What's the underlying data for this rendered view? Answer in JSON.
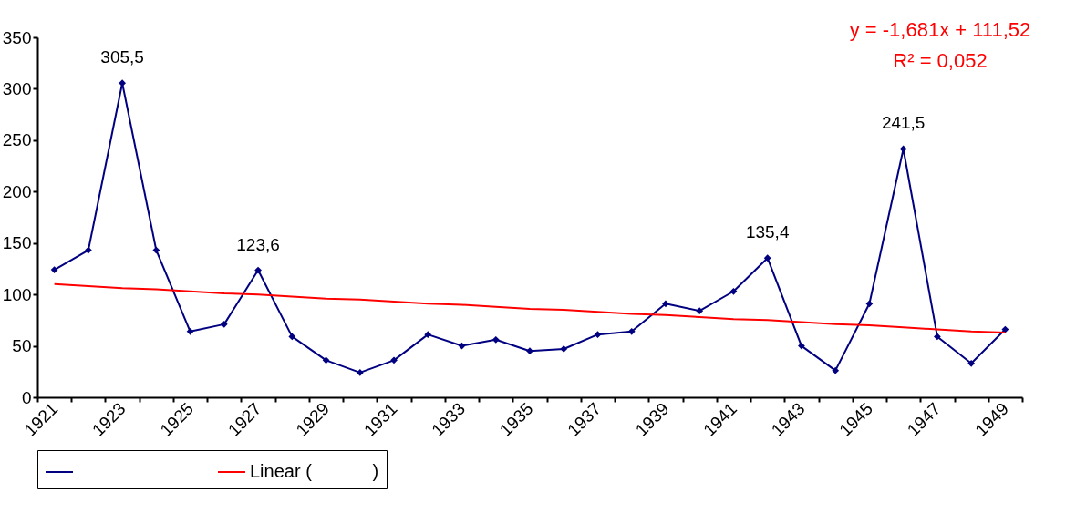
{
  "chart_data": {
    "type": "line",
    "categories": [
      "1921",
      null,
      "1923",
      null,
      "1925",
      null,
      "1927",
      null,
      "1929",
      null,
      "1931",
      null,
      "1933",
      null,
      "1935",
      null,
      "1937",
      null,
      "1939",
      null,
      "1941",
      null,
      "1943",
      null,
      "1945",
      null,
      "1947",
      null,
      "1949"
    ],
    "series": [
      {
        "color": "#000080",
        "marker": "diamond",
        "values": [
          124,
          143,
          305.5,
          143,
          64,
          71,
          123.6,
          59,
          36,
          24,
          36,
          61,
          50,
          56,
          45,
          47,
          61,
          64,
          91,
          84,
          103,
          135.4,
          50,
          26,
          91,
          241.5,
          59,
          33,
          66
        ],
        "value_labels": [
          null,
          null,
          "305,5",
          null,
          null,
          null,
          "123,6",
          null,
          null,
          null,
          null,
          null,
          null,
          null,
          null,
          null,
          null,
          null,
          null,
          null,
          null,
          "135,4",
          null,
          null,
          null,
          "241,5",
          null,
          null,
          null
        ]
      },
      {
        "name": "Linear (            )",
        "color": "#ff0000",
        "marker": "none",
        "values": [
          110,
          108,
          106,
          105,
          103,
          101,
          100,
          98,
          96,
          95,
          93,
          91,
          90,
          88,
          86,
          85,
          83,
          81,
          80,
          78,
          76,
          75,
          73,
          71,
          70,
          68,
          66,
          64,
          63
        ]
      }
    ],
    "ylim": [
      0,
      350
    ],
    "yticks": [
      0,
      50,
      100,
      150,
      200,
      250,
      300,
      350
    ],
    "grid": false,
    "legend": "bottom",
    "annotations": [
      "y = -1,681x + 111,52",
      "R² = 0,052"
    ]
  }
}
